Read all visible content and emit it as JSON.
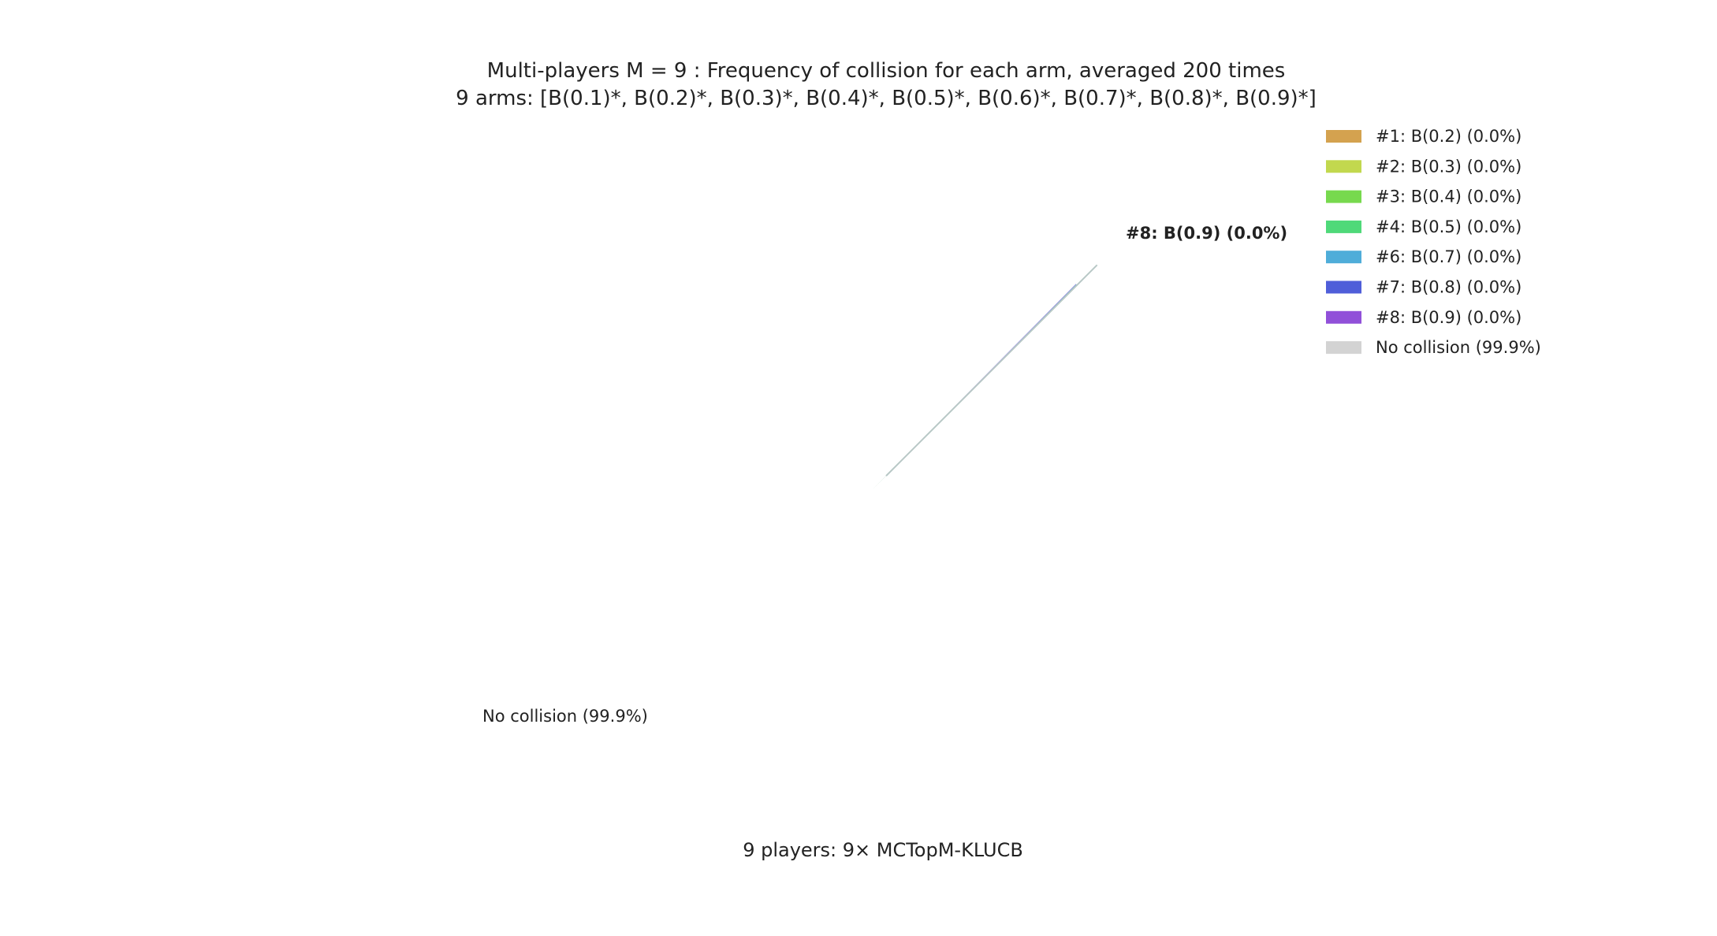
{
  "chart_data": {
    "type": "pie",
    "title": "Multi-players M = 9 : Frequency of collision for each arm, averaged 200 times",
    "subtitle": "9 arms: [B(0.1)*, B(0.2)*, B(0.3)*, B(0.4)*, B(0.5)*, B(0.6)*, B(0.7)*, B(0.8)*, B(0.9)*]",
    "xlabel": "9 players: 9× MCTopM-KLUCB",
    "legend_position": "top-right",
    "slices": [
      {
        "label": "#1: B(0.2) (0.0%)",
        "value": 0.0,
        "color": "#d4a24f"
      },
      {
        "label": "#2: B(0.3) (0.0%)",
        "value": 0.0,
        "color": "#c2d84e"
      },
      {
        "label": "#3: B(0.4) (0.0%)",
        "value": 0.0,
        "color": "#77d94e"
      },
      {
        "label": "#4: B(0.5) (0.0%)",
        "value": 0.0,
        "color": "#4fd979"
      },
      {
        "label": "#6: B(0.7) (0.0%)",
        "value": 0.0,
        "color": "#4fadd9"
      },
      {
        "label": "#7: B(0.8) (0.0%)",
        "value": 0.0,
        "color": "#4f5ed9"
      },
      {
        "label": "#8: B(0.9) (0.0%)",
        "value": 0.0,
        "color": "#9150d9"
      },
      {
        "label": "No collision (99.9%)",
        "value": 99.9,
        "color": "#d3d3d3"
      }
    ],
    "overlapping_slice_label": "#8: B(0.9) (0.0%)"
  }
}
